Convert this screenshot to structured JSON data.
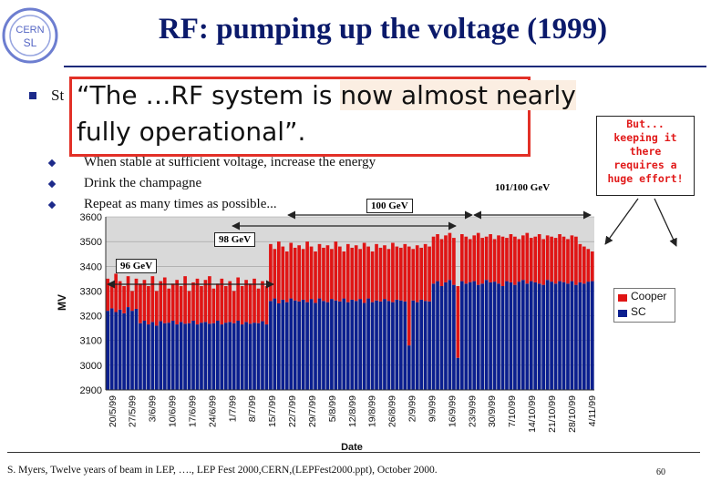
{
  "slide": {
    "logo_lines": [
      "CERN",
      "SL"
    ],
    "title": "RF: pumping up the voltage (1999)",
    "bullet_lead": "St",
    "sub_bullets": [
      "When stable at sufficient voltage, increase the energy",
      "Drink the champagne",
      "Repeat as many times as possible..."
    ],
    "quote_line1_before": "“The …RF system is ",
    "quote_line1_highlight": "now almost nearly",
    "quote_line2": "fully operational”.",
    "note": [
      "But...",
      "keeping it",
      "there",
      "requires a",
      "huge effort!"
    ],
    "footer": "S. Myers, Twelve years of beam in LEP, …., LEP Fest 2000,CERN,(LEPFest2000.ppt), October 2000.",
    "page_number": "60",
    "colors": {
      "title": "#0b1a6b",
      "cooper": "#e01515",
      "sc": "#0b1f8f",
      "quote_border": "#e23027",
      "note_text": "#e11a1a"
    }
  },
  "chart_data": {
    "type": "bar",
    "stacked": true,
    "ylabel": "MV",
    "xlabel": "Date",
    "ylim": [
      2900,
      3600
    ],
    "yticks": [
      3600,
      3500,
      3400,
      3300,
      3200,
      3100,
      3000,
      2900
    ],
    "x_tick_labels": [
      "20/5/99",
      "27/5/99",
      "3/6/99",
      "10/6/99",
      "17/6/99",
      "24/6/99",
      "1/7/99",
      "8/7/99",
      "15/7/99",
      "22/7/99",
      "29/7/99",
      "5/8/99",
      "12/8/99",
      "19/8/99",
      "26/8/99",
      "2/9/99",
      "9/9/99",
      "16/9/99",
      "23/9/99",
      "30/9/99",
      "7/10/99",
      "14/10/99",
      "21/10/99",
      "28/10/99",
      "4/11/99"
    ],
    "series": [
      {
        "name": "Cooper",
        "color": "#e01515"
      },
      {
        "name": "SC",
        "color": "#0b1f8f"
      }
    ],
    "energy_annotations": [
      "96 GeV",
      "98 GeV",
      "100 GeV",
      "101/100 GeV"
    ],
    "bars": [
      [
        3220,
        3350
      ],
      [
        3230,
        3330
      ],
      [
        3215,
        3370
      ],
      [
        3225,
        3340
      ],
      [
        3210,
        3320
      ],
      [
        3235,
        3360
      ],
      [
        3220,
        3300
      ],
      [
        3228,
        3350
      ],
      [
        3170,
        3330
      ],
      [
        3180,
        3345
      ],
      [
        3165,
        3320
      ],
      [
        3175,
        3360
      ],
      [
        3160,
        3300
      ],
      [
        3178,
        3340
      ],
      [
        3170,
        3355
      ],
      [
        3172,
        3310
      ],
      [
        3180,
        3330
      ],
      [
        3165,
        3345
      ],
      [
        3175,
        3320
      ],
      [
        3168,
        3360
      ],
      [
        3170,
        3300
      ],
      [
        3180,
        3335
      ],
      [
        3165,
        3350
      ],
      [
        3172,
        3320
      ],
      [
        3175,
        3345
      ],
      [
        3168,
        3360
      ],
      [
        3170,
        3310
      ],
      [
        3180,
        3330
      ],
      [
        3165,
        3350
      ],
      [
        3172,
        3320
      ],
      [
        3175,
        3340
      ],
      [
        3170,
        3300
      ],
      [
        3180,
        3355
      ],
      [
        3165,
        3320
      ],
      [
        3175,
        3345
      ],
      [
        3168,
        3330
      ],
      [
        3172,
        3350
      ],
      [
        3170,
        3310
      ],
      [
        3178,
        3340
      ],
      [
        3165,
        3320
      ],
      [
        3260,
        3490
      ],
      [
        3270,
        3470
      ],
      [
        3250,
        3500
      ],
      [
        3265,
        3480
      ],
      [
        3255,
        3460
      ],
      [
        3270,
        3495
      ],
      [
        3262,
        3475
      ],
      [
        3258,
        3485
      ],
      [
        3265,
        3470
      ],
      [
        3255,
        3500
      ],
      [
        3268,
        3480
      ],
      [
        3252,
        3460
      ],
      [
        3270,
        3490
      ],
      [
        3260,
        3475
      ],
      [
        3255,
        3485
      ],
      [
        3268,
        3470
      ],
      [
        3262,
        3500
      ],
      [
        3258,
        3480
      ],
      [
        3270,
        3460
      ],
      [
        3255,
        3490
      ],
      [
        3265,
        3475
      ],
      [
        3260,
        3485
      ],
      [
        3268,
        3470
      ],
      [
        3252,
        3495
      ],
      [
        3270,
        3480
      ],
      [
        3255,
        3460
      ],
      [
        3262,
        3490
      ],
      [
        3258,
        3475
      ],
      [
        3268,
        3485
      ],
      [
        3260,
        3470
      ],
      [
        3255,
        3495
      ],
      [
        3265,
        3480
      ],
      [
        3262,
        3475
      ],
      [
        3258,
        3490
      ],
      [
        3080,
        3480
      ],
      [
        3262,
        3470
      ],
      [
        3255,
        3485
      ],
      [
        3265,
        3475
      ],
      [
        3260,
        3490
      ],
      [
        3258,
        3480
      ],
      [
        3330,
        3520
      ],
      [
        3340,
        3530
      ],
      [
        3320,
        3510
      ],
      [
        3335,
        3525
      ],
      [
        3345,
        3535
      ],
      [
        3325,
        3515
      ],
      [
        3030,
        3320
      ],
      [
        3340,
        3530
      ],
      [
        3330,
        3520
      ],
      [
        3336,
        3510
      ],
      [
        3340,
        3525
      ],
      [
        3325,
        3535
      ],
      [
        3330,
        3515
      ],
      [
        3345,
        3520
      ],
      [
        3335,
        3530
      ],
      [
        3338,
        3510
      ],
      [
        3330,
        3525
      ],
      [
        3320,
        3520
      ],
      [
        3340,
        3515
      ],
      [
        3335,
        3530
      ],
      [
        3325,
        3520
      ],
      [
        3338,
        3510
      ],
      [
        3345,
        3525
      ],
      [
        3330,
        3535
      ],
      [
        3340,
        3515
      ],
      [
        3335,
        3520
      ],
      [
        3330,
        3530
      ],
      [
        3325,
        3510
      ],
      [
        3345,
        3525
      ],
      [
        3338,
        3520
      ],
      [
        3330,
        3515
      ],
      [
        3340,
        3530
      ],
      [
        3336,
        3520
      ],
      [
        3330,
        3510
      ],
      [
        3340,
        3525
      ],
      [
        3325,
        3520
      ],
      [
        3335,
        3490
      ],
      [
        3330,
        3480
      ],
      [
        3338,
        3470
      ],
      [
        3340,
        3460
      ]
    ]
  }
}
